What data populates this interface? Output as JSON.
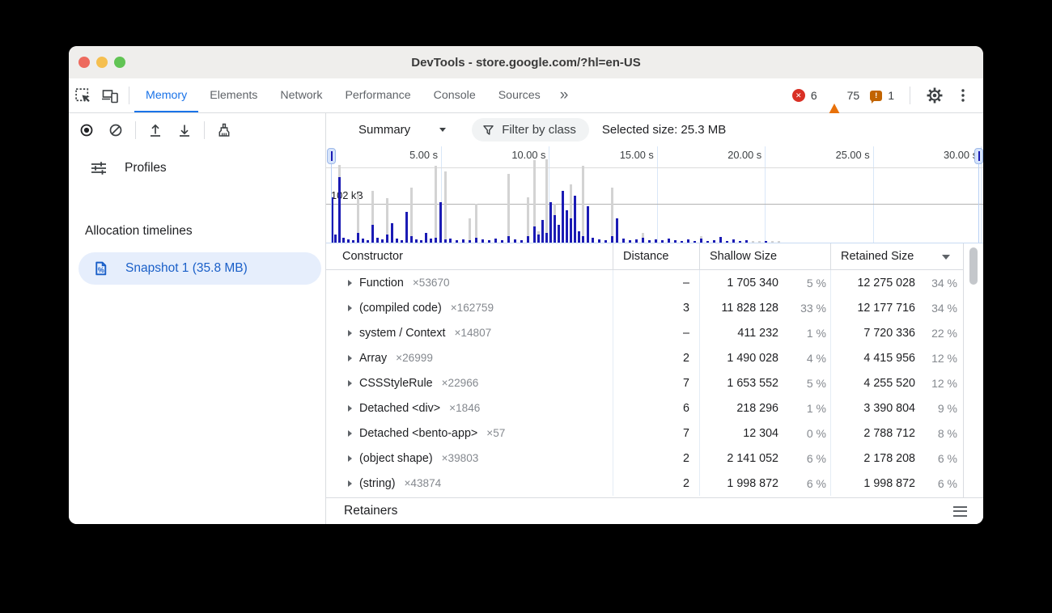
{
  "window": {
    "title": "DevTools - store.google.com/?hl=en-US"
  },
  "traffic_lights": {
    "close": "#ed6a5e",
    "minimize": "#f5bf4f",
    "zoom": "#61c454"
  },
  "tabs": {
    "items": [
      {
        "label": "Memory",
        "active": true
      },
      {
        "label": "Elements",
        "active": false
      },
      {
        "label": "Network",
        "active": false
      },
      {
        "label": "Performance",
        "active": false
      },
      {
        "label": "Console",
        "active": false
      },
      {
        "label": "Sources",
        "active": false
      }
    ],
    "more_label": "»",
    "badges": {
      "errors": "6",
      "warnings": "75",
      "issues": "1"
    }
  },
  "toolbar": {
    "perspective_label": "Summary",
    "filter_label": "Filter by class",
    "selected_size_label": "Selected size: 25.3 MB"
  },
  "sidebar": {
    "profiles_label": "Profiles",
    "section_label": "Allocation timelines",
    "snapshot": {
      "label": "Snapshot 1 (35.8 MB)",
      "selected": true
    }
  },
  "timeline": {
    "axis_ticks": [
      "5.00 s",
      "10.00 s",
      "15.00 s",
      "20.00 s",
      "25.00 s",
      "30.00 s"
    ],
    "memory_label": "102 kB",
    "colors": {
      "bar_total": "#d3d3d3",
      "bar_allocated": "#1b1bb4",
      "gridline": "#d9e7f8"
    },
    "bars": [
      [
        2,
        0,
        56
      ],
      [
        6,
        0,
        10
      ],
      [
        11,
        96,
        81
      ],
      [
        16,
        0,
        6
      ],
      [
        22,
        0,
        4
      ],
      [
        28,
        2,
        3
      ],
      [
        34,
        60,
        12
      ],
      [
        40,
        0,
        5
      ],
      [
        46,
        2,
        3
      ],
      [
        52,
        64,
        22
      ],
      [
        58,
        0,
        6
      ],
      [
        64,
        2,
        4
      ],
      [
        70,
        55,
        10
      ],
      [
        76,
        0,
        24
      ],
      [
        82,
        2,
        5
      ],
      [
        88,
        0,
        3
      ],
      [
        94,
        0,
        38
      ],
      [
        100,
        68,
        8
      ],
      [
        106,
        0,
        4
      ],
      [
        112,
        2,
        3
      ],
      [
        118,
        0,
        12
      ],
      [
        124,
        0,
        5
      ],
      [
        130,
        95,
        6
      ],
      [
        136,
        0,
        50
      ],
      [
        142,
        88,
        4
      ],
      [
        148,
        0,
        5
      ],
      [
        156,
        0,
        3
      ],
      [
        164,
        0,
        4
      ],
      [
        172,
        30,
        3
      ],
      [
        180,
        48,
        6
      ],
      [
        188,
        0,
        4
      ],
      [
        196,
        2,
        3
      ],
      [
        204,
        0,
        5
      ],
      [
        212,
        0,
        3
      ],
      [
        220,
        85,
        8
      ],
      [
        228,
        0,
        4
      ],
      [
        236,
        2,
        3
      ],
      [
        244,
        56,
        8
      ],
      [
        252,
        102,
        20
      ],
      [
        257,
        14,
        10
      ],
      [
        262,
        0,
        28
      ],
      [
        267,
        103,
        12
      ],
      [
        272,
        0,
        50
      ],
      [
        277,
        48,
        34
      ],
      [
        282,
        2,
        22
      ],
      [
        287,
        0,
        64
      ],
      [
        292,
        0,
        40
      ],
      [
        297,
        72,
        30
      ],
      [
        302,
        0,
        58
      ],
      [
        307,
        0,
        14
      ],
      [
        312,
        95,
        8
      ],
      [
        318,
        0,
        45
      ],
      [
        324,
        0,
        6
      ],
      [
        332,
        0,
        4
      ],
      [
        340,
        2,
        3
      ],
      [
        348,
        68,
        8
      ],
      [
        354,
        0,
        30
      ],
      [
        362,
        0,
        5
      ],
      [
        370,
        2,
        3
      ],
      [
        378,
        0,
        4
      ],
      [
        386,
        12,
        6
      ],
      [
        394,
        0,
        3
      ],
      [
        402,
        2,
        4
      ],
      [
        410,
        0,
        3
      ],
      [
        418,
        0,
        5
      ],
      [
        426,
        0,
        3
      ],
      [
        434,
        2,
        2
      ],
      [
        442,
        0,
        4
      ],
      [
        450,
        2,
        2
      ],
      [
        458,
        8,
        5
      ],
      [
        466,
        2,
        2
      ],
      [
        474,
        0,
        3
      ],
      [
        482,
        0,
        7
      ],
      [
        490,
        2,
        2
      ],
      [
        498,
        0,
        4
      ],
      [
        506,
        2,
        2
      ],
      [
        514,
        0,
        3
      ],
      [
        522,
        2,
        0
      ],
      [
        530,
        2,
        0
      ],
      [
        538,
        2,
        2
      ],
      [
        546,
        2,
        0
      ],
      [
        554,
        2,
        0
      ]
    ]
  },
  "table": {
    "columns": [
      "Constructor",
      "Distance",
      "Shallow Size",
      "Retained Size"
    ],
    "sort_column": "Retained Size",
    "sort_direction": "desc",
    "rows": [
      {
        "name": "Function",
        "count": "×53670",
        "distance": "–",
        "shallow": "1 705 340",
        "shallow_pct": "5 %",
        "retained": "12 275 028",
        "retained_pct": "34 %"
      },
      {
        "name": "(compiled code)",
        "count": "×162759",
        "distance": "3",
        "shallow": "11 828 128",
        "shallow_pct": "33 %",
        "retained": "12 177 716",
        "retained_pct": "34 %"
      },
      {
        "name": "system / Context",
        "count": "×14807",
        "distance": "–",
        "shallow": "411 232",
        "shallow_pct": "1 %",
        "retained": "7 720 336",
        "retained_pct": "22 %"
      },
      {
        "name": "Array",
        "count": "×26999",
        "distance": "2",
        "shallow": "1 490 028",
        "shallow_pct": "4 %",
        "retained": "4 415 956",
        "retained_pct": "12 %"
      },
      {
        "name": "CSSStyleRule",
        "count": "×22966",
        "distance": "7",
        "shallow": "1 653 552",
        "shallow_pct": "5 %",
        "retained": "4 255 520",
        "retained_pct": "12 %"
      },
      {
        "name": "Detached <div>",
        "count": "×1846",
        "distance": "6",
        "shallow": "218 296",
        "shallow_pct": "1 %",
        "retained": "3 390 804",
        "retained_pct": "9 %"
      },
      {
        "name": "Detached <bento-app>",
        "count": "×57",
        "distance": "7",
        "shallow": "12 304",
        "shallow_pct": "0 %",
        "retained": "2 788 712",
        "retained_pct": "8 %"
      },
      {
        "name": "(object shape)",
        "count": "×39803",
        "distance": "2",
        "shallow": "2 141 052",
        "shallow_pct": "6 %",
        "retained": "2 178 208",
        "retained_pct": "6 %"
      },
      {
        "name": "(string)",
        "count": "×43874",
        "distance": "2",
        "shallow": "1 998 872",
        "shallow_pct": "6 %",
        "retained": "1 998 872",
        "retained_pct": "6 %"
      }
    ]
  },
  "retainers": {
    "label": "Retainers"
  }
}
